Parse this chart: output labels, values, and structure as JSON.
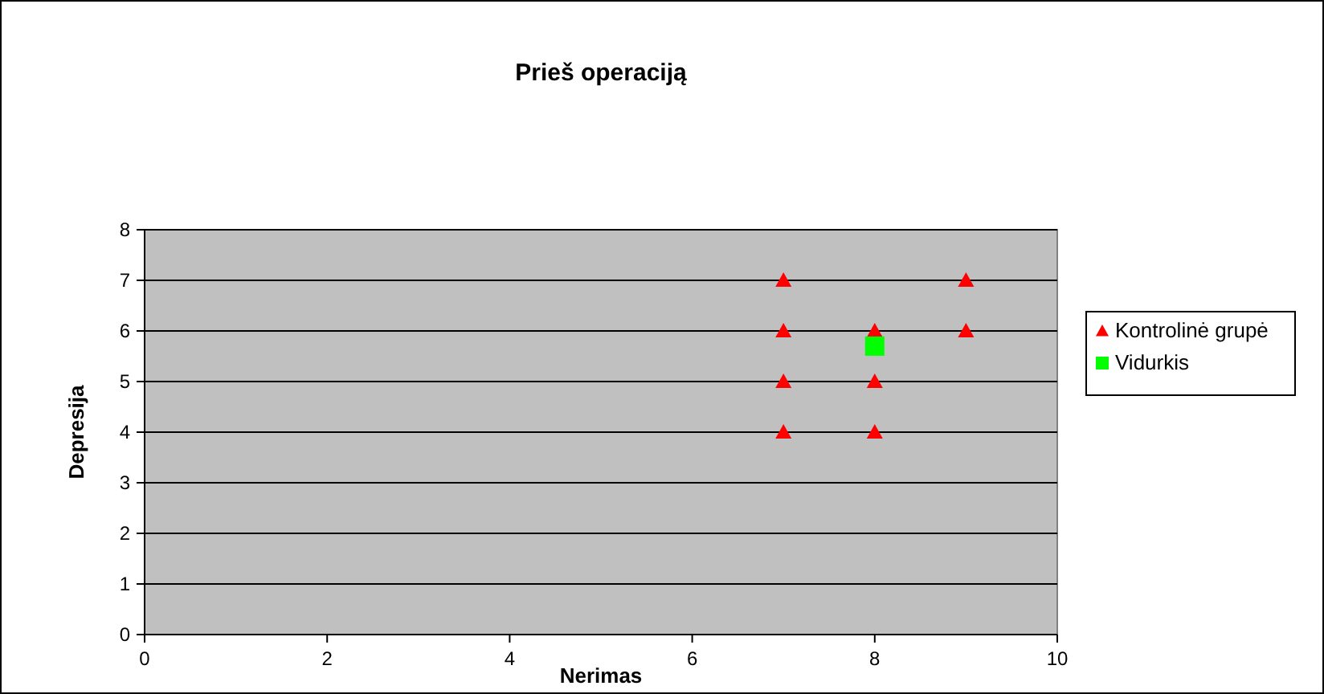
{
  "chart_data": {
    "type": "scatter",
    "title": "Prieš operaciją",
    "xlabel": "Nerimas",
    "ylabel": "Depresija",
    "xlim": [
      0,
      10
    ],
    "xticks": [
      0,
      2,
      4,
      6,
      8,
      10
    ],
    "ylim": [
      0,
      8
    ],
    "yticks": [
      0,
      1,
      2,
      3,
      4,
      5,
      6,
      7,
      8
    ],
    "grid": "y",
    "legend": "right",
    "series": [
      {
        "name": "Kontrolinė grupė",
        "color": "#ff0000",
        "marker": "triangle",
        "x": [
          7,
          7,
          7,
          7,
          8,
          8,
          8,
          9,
          9
        ],
        "values": [
          7,
          6,
          5,
          4,
          6,
          5,
          4,
          7,
          6
        ]
      },
      {
        "name": "Vidurkis",
        "color": "#00ff00",
        "marker": "square",
        "x": [
          8
        ],
        "values": [
          5.7
        ]
      }
    ]
  }
}
